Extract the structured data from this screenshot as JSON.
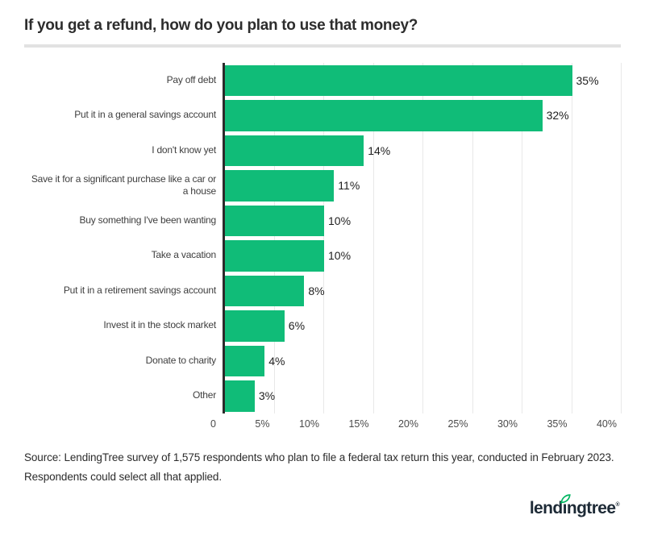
{
  "title": "If you get a refund, how do you plan to use that money?",
  "source_note": "Source: LendingTree survey of 1,575 respondents who plan to file a federal tax return this year, conducted in February 2023. Respondents could select all that applied.",
  "logo": {
    "part1": "lend",
    "part2": "ngtree",
    "registered": "®",
    "leaf_icon": "leaf-icon"
  },
  "colors": {
    "bar": "#10BC78",
    "axis": "#2b2b2b",
    "grid": "#e8e8e8",
    "title_text": "#2d2d2d",
    "category_text": "#3e3e3e",
    "tick_text": "#4a4a4a",
    "value_text": "#1f1f1f",
    "divider": "#e2e2e2",
    "logo_text": "#1d2a36",
    "leaf_green": "#00B560"
  },
  "chart_data": {
    "type": "bar",
    "orientation": "horizontal",
    "title": "If you get a refund, how do you plan to use that money?",
    "xlabel": "",
    "ylabel": "",
    "categories": [
      "Pay off debt",
      "Put it in a general savings account",
      "I don't know yet",
      "Save it for a significant purchase like a car or a house",
      "Buy something I've been wanting",
      "Take a vacation",
      "Put it in a retirement savings account",
      "Invest it in the stock market",
      "Donate to charity",
      "Other"
    ],
    "values": [
      35,
      32,
      14,
      11,
      10,
      10,
      8,
      6,
      4,
      3
    ],
    "value_labels": [
      "35%",
      "32%",
      "14%",
      "11%",
      "10%",
      "10%",
      "8%",
      "6%",
      "4%",
      "3%"
    ],
    "xlim": [
      0,
      40
    ],
    "x_ticks": [
      {
        "value": 0,
        "label": "0"
      },
      {
        "value": 5,
        "label": "5%"
      },
      {
        "value": 10,
        "label": "10%"
      },
      {
        "value": 15,
        "label": "15%"
      },
      {
        "value": 20,
        "label": "20%"
      },
      {
        "value": 25,
        "label": "25%"
      },
      {
        "value": 30,
        "label": "30%"
      },
      {
        "value": 35,
        "label": "35%"
      },
      {
        "value": 40,
        "label": "40%"
      }
    ],
    "grid": true,
    "legend": false
  }
}
